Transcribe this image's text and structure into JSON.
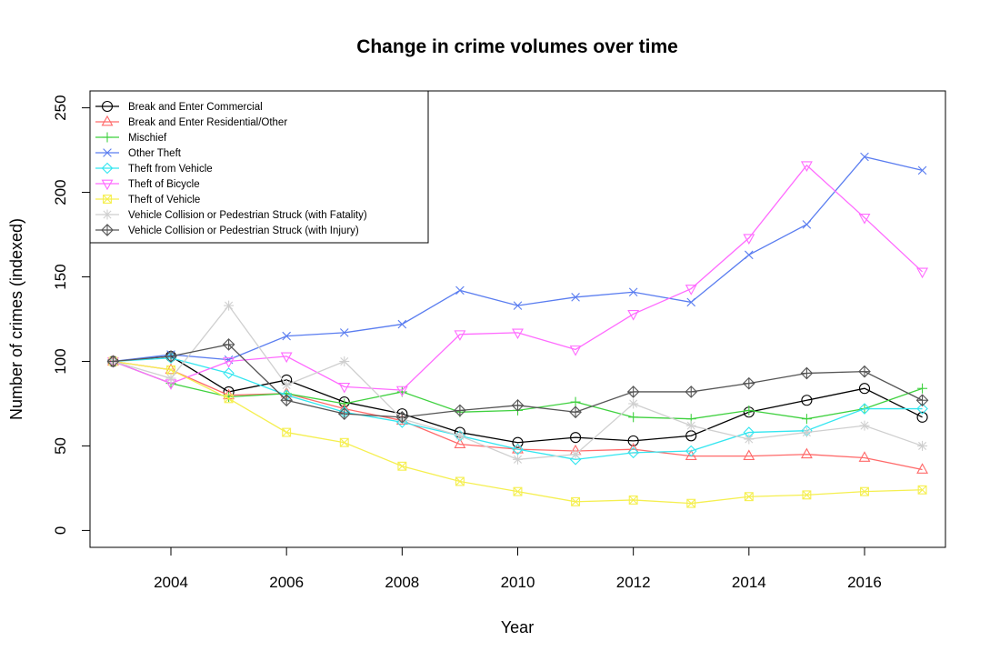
{
  "chart_data": {
    "type": "line",
    "title": "Change in crime volumes over time",
    "xlabel": "Year",
    "ylabel": "Number of crimes (indexed)",
    "xlim": [
      2002.6,
      2017.4
    ],
    "ylim": [
      -10,
      260
    ],
    "x_ticks": [
      2004,
      2006,
      2008,
      2010,
      2012,
      2014,
      2016
    ],
    "y_ticks": [
      0,
      50,
      100,
      150,
      200,
      250
    ],
    "grid": false,
    "legend_position": "top-left",
    "x": [
      2003,
      2004,
      2005,
      2006,
      2007,
      2008,
      2009,
      2010,
      2011,
      2012,
      2013,
      2014,
      2015,
      2016,
      2017
    ],
    "series": [
      {
        "name": "Break and Enter Commercial",
        "color": "#000000",
        "marker": "circle",
        "values": [
          100,
          103,
          82,
          89,
          76,
          69,
          58,
          52,
          55,
          53,
          56,
          70,
          77,
          84,
          67
        ]
      },
      {
        "name": "Break and Enter Residential/Other",
        "color": "#ff6a6a",
        "marker": "triangle-up",
        "values": [
          100,
          95,
          80,
          81,
          72,
          65,
          51,
          48,
          47,
          48,
          44,
          44,
          45,
          43,
          36
        ]
      },
      {
        "name": "Mischief",
        "color": "#3fd13f",
        "marker": "plus",
        "values": [
          100,
          87,
          79,
          81,
          75,
          82,
          70,
          71,
          76,
          67,
          66,
          71,
          66,
          72,
          84
        ]
      },
      {
        "name": "Other Theft",
        "color": "#5a7df0",
        "marker": "x",
        "values": [
          100,
          104,
          101,
          115,
          117,
          122,
          142,
          133,
          138,
          141,
          135,
          163,
          181,
          221,
          213
        ]
      },
      {
        "name": "Theft from Vehicle",
        "color": "#33e6f0",
        "marker": "diamond",
        "values": [
          100,
          102,
          93,
          80,
          70,
          64,
          56,
          48,
          42,
          46,
          47,
          58,
          59,
          72,
          72
        ]
      },
      {
        "name": "Theft of Bicycle",
        "color": "#ff6aff",
        "marker": "triangle-down",
        "values": [
          100,
          87,
          100,
          103,
          85,
          83,
          116,
          117,
          107,
          128,
          143,
          173,
          216,
          185,
          153
        ]
      },
      {
        "name": "Theft of Vehicle",
        "color": "#f5ef4f",
        "marker": "square-x",
        "values": [
          100,
          95,
          78,
          58,
          52,
          38,
          29,
          23,
          17,
          18,
          16,
          20,
          21,
          23,
          24
        ]
      },
      {
        "name": "Vehicle Collision or Pedestrian Struck (with Fatality)",
        "color": "#cfcfcf",
        "marker": "asterisk",
        "values": [
          100,
          90,
          133,
          86,
          100,
          66,
          56,
          42,
          45,
          75,
          62,
          54,
          58,
          62,
          50
        ]
      },
      {
        "name": "Vehicle Collision or Pedestrian Struck (with Injury)",
        "color": "#555555",
        "marker": "diamond-plus",
        "values": [
          100,
          103,
          110,
          77,
          69,
          67,
          71,
          74,
          70,
          82,
          82,
          87,
          93,
          94,
          77
        ]
      }
    ]
  }
}
